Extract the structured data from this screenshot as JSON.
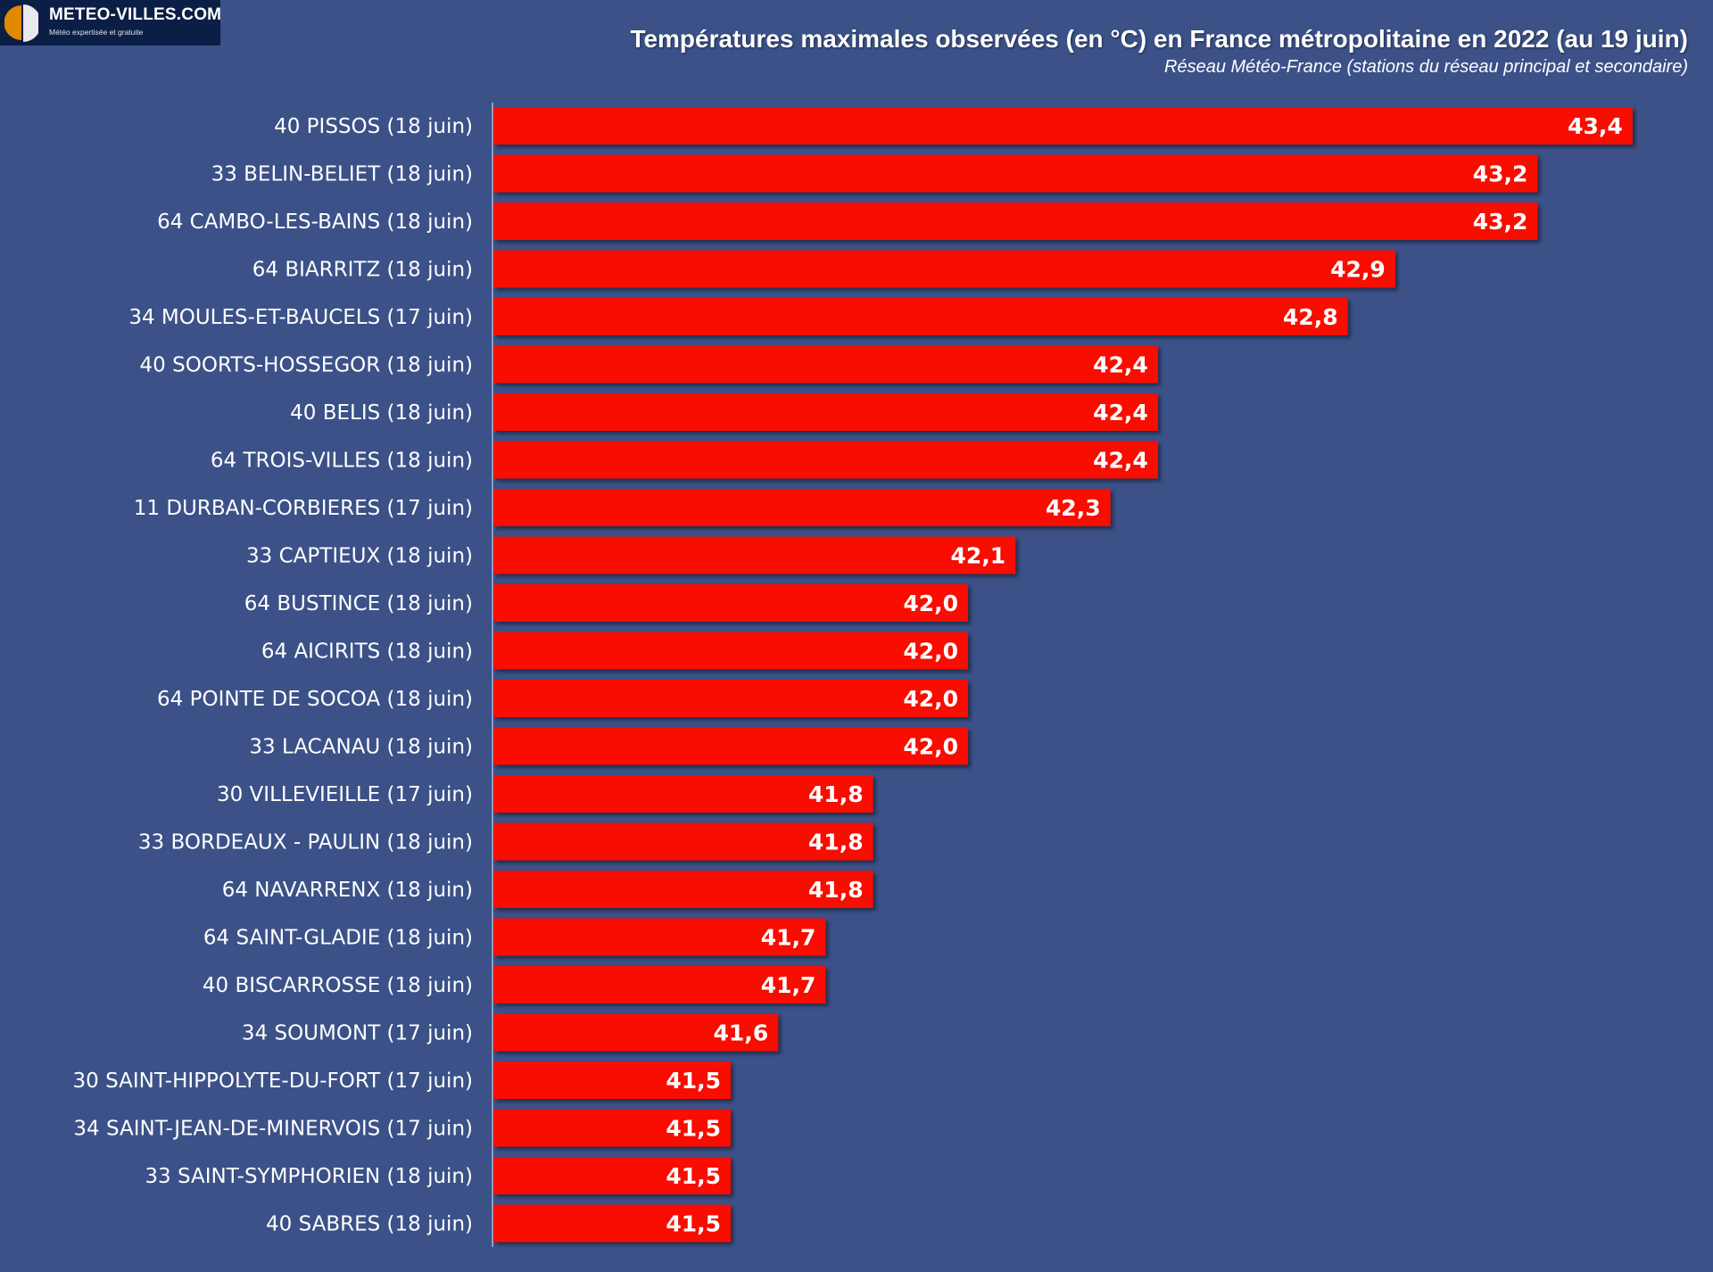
{
  "logo": {
    "name": "METEO-VILLES.COM",
    "tagline": "Météo expertisée et gratuite"
  },
  "colors": {
    "background": "#3b5188",
    "bar": "#f81000",
    "logo_bg": "#0b1e45",
    "logo_orange": "#e08a00"
  },
  "chart_data": {
    "type": "bar",
    "orientation": "horizontal",
    "title": "Températures maximales observées (en °C) en France métropolitaine en 2022 (au 19 juin)",
    "subtitle": "Réseau Météo-France (stations du réseau principal et secondaire)",
    "xlim": [
      41.0,
      43.5
    ],
    "grid": false,
    "categories": [
      "40 PISSOS (18 juin)",
      "33 BELIN-BELIET (18 juin)",
      "64 CAMBO-LES-BAINS (18 juin)",
      "64 BIARRITZ (18 juin)",
      "34 MOULES-ET-BAUCELS (17 juin)",
      "40 SOORTS-HOSSEGOR (18 juin)",
      "40 BELIS (18 juin)",
      "64 TROIS-VILLES (18 juin)",
      "11 DURBAN-CORBIERES (17 juin)",
      "33 CAPTIEUX (18 juin)",
      "64 BUSTINCE (18 juin)",
      "64 AICIRITS (18 juin)",
      "64 POINTE DE SOCOA (18 juin)",
      "33 LACANAU (18 juin)",
      "30 VILLEVIEILLE (17 juin)",
      "33 BORDEAUX - PAULIN (18 juin)",
      "64 NAVARRENX (18 juin)",
      "64 SAINT-GLADIE (18 juin)",
      "40 BISCARROSSE (18 juin)",
      "34 SOUMONT (17 juin)",
      "30 SAINT-HIPPOLYTE-DU-FORT (17 juin)",
      "34 SAINT-JEAN-DE-MINERVOIS (17 juin)",
      "33 SAINT-SYMPHORIEN (18 juin)",
      "40 SABRES (18 juin)"
    ],
    "values": [
      43.4,
      43.2,
      43.2,
      42.9,
      42.8,
      42.4,
      42.4,
      42.4,
      42.3,
      42.1,
      42.0,
      42.0,
      42.0,
      42.0,
      41.8,
      41.8,
      41.8,
      41.7,
      41.7,
      41.6,
      41.5,
      41.5,
      41.5,
      41.5
    ],
    "value_labels": [
      "43,4",
      "43,2",
      "43,2",
      "42,9",
      "42,8",
      "42,4",
      "42,4",
      "42,4",
      "42,3",
      "42,1",
      "42,0",
      "42,0",
      "42,0",
      "42,0",
      "41,8",
      "41,8",
      "41,8",
      "41,7",
      "41,7",
      "41,6",
      "41,5",
      "41,5",
      "41,5",
      "41,5"
    ]
  }
}
